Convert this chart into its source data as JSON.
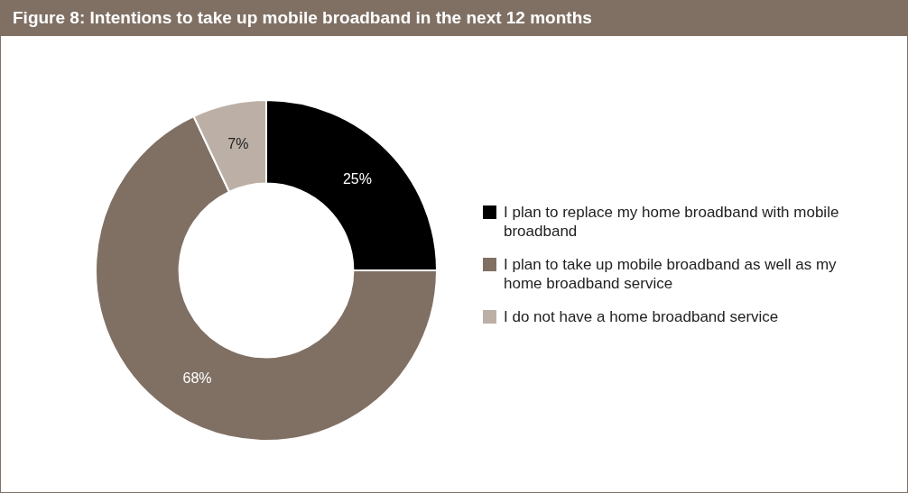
{
  "chart_data": {
    "type": "donut",
    "title": "Figure 8: Intentions to take up mobile broadband in the next 12 months",
    "categories": [
      "I plan to replace my home broadband with mobile broadband",
      "I plan to take up mobile broadband as well as my home broadband service",
      "I do not have a home broadband service"
    ],
    "values": [
      25,
      68,
      7
    ],
    "colors": [
      "#000000",
      "#807064",
      "#bcb0a6"
    ],
    "value_labels": [
      "25%",
      "68%",
      "7%"
    ],
    "legend": "right"
  }
}
